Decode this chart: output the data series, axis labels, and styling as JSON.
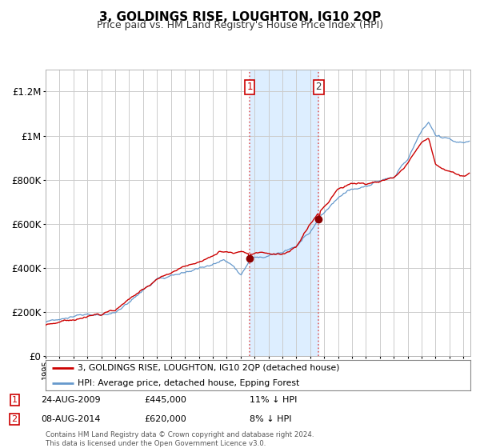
{
  "title": "3, GOLDINGS RISE, LOUGHTON, IG10 2QP",
  "subtitle": "Price paid vs. HM Land Registry's House Price Index (HPI)",
  "legend_line1": "3, GOLDINGS RISE, LOUGHTON, IG10 2QP (detached house)",
  "legend_line2": "HPI: Average price, detached house, Epping Forest",
  "footer": "Contains HM Land Registry data © Crown copyright and database right 2024.\nThis data is licensed under the Open Government Licence v3.0.",
  "transaction1_date": "24-AUG-2009",
  "transaction1_price": 445000,
  "transaction1_hpi_diff": "11% ↓ HPI",
  "transaction2_date": "08-AUG-2014",
  "transaction2_price": 620000,
  "transaction2_hpi_diff": "8% ↓ HPI",
  "sale1_year": 2009.647,
  "sale2_year": 2014.603,
  "sale1_value": 445000,
  "sale2_value": 620000,
  "ylim": [
    0,
    1300000
  ],
  "xlim_start": 1995.0,
  "xlim_end": 2025.5,
  "red_color": "#cc0000",
  "blue_color": "#6699cc",
  "shade_color": "#ddeeff",
  "grid_color": "#cccccc",
  "background_color": "#ffffff",
  "title_fontsize": 11,
  "subtitle_fontsize": 9
}
